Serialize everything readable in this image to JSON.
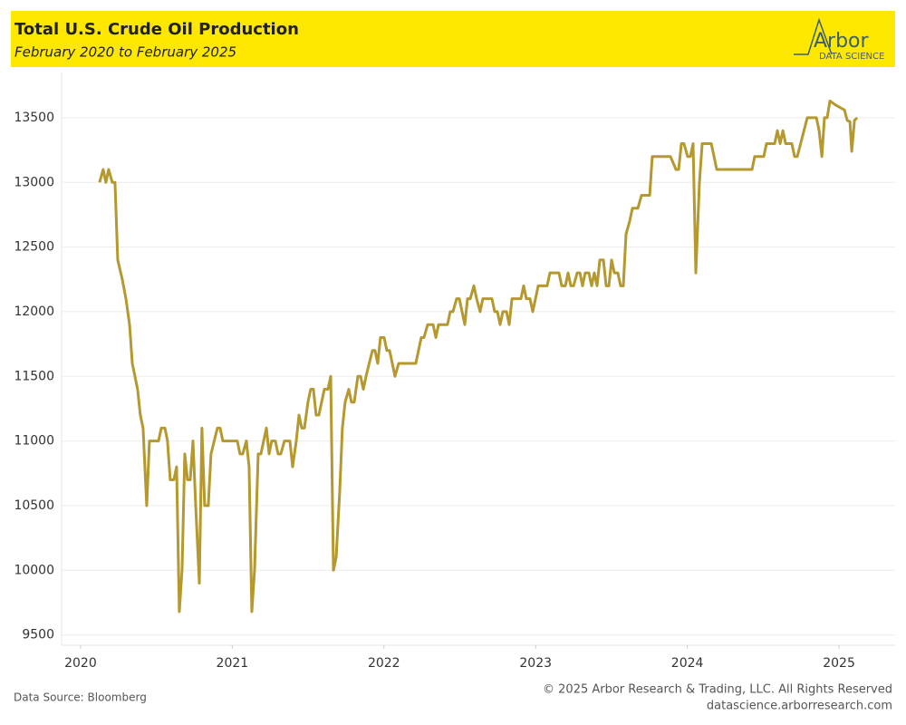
{
  "chart_data": {
    "type": "line",
    "title": "Total U.S. Crude Oil Production",
    "subtitle": "February 2020 to February 2025",
    "logo_text": "Arbor",
    "logo_subtext": "DATA SCIENCE",
    "source": "Data Source: Bloomberg",
    "copyright": "© 2025 Arbor Research & Trading, LLC. All Rights Reserved",
    "website": "datascience.arborresearch.com",
    "xlim": [
      2019.875,
      2025.37
    ],
    "xticks": [
      2020,
      2021,
      2022,
      2023,
      2024,
      2025
    ],
    "ylim": [
      9420,
      13850
    ],
    "yticks": [
      9500,
      10000,
      10500,
      11000,
      11500,
      12000,
      12500,
      13000,
      13500
    ],
    "grid": true,
    "x": [
      2020.125,
      2020.149,
      2020.167,
      2020.185,
      2020.209,
      2020.227,
      2020.245,
      2020.275,
      2020.299,
      2020.323,
      2020.341,
      2020.376,
      2020.394,
      2020.412,
      2020.436,
      2020.454,
      2020.514,
      2020.532,
      2020.556,
      2020.573,
      2020.591,
      2020.615,
      2020.633,
      2020.651,
      2020.669,
      2020.687,
      2020.705,
      2020.723,
      2020.741,
      2020.759,
      2020.783,
      2020.8,
      2020.818,
      2020.842,
      2020.86,
      2020.902,
      2020.92,
      2020.938,
      2021.033,
      2021.051,
      2021.069,
      2021.093,
      2021.111,
      2021.129,
      2021.147,
      2021.171,
      2021.189,
      2021.225,
      2021.243,
      2021.26,
      2021.284,
      2021.302,
      2021.32,
      2021.344,
      2021.38,
      2021.398,
      2021.422,
      2021.44,
      2021.458,
      2021.476,
      2021.499,
      2021.517,
      2021.535,
      2021.553,
      2021.571,
      2021.607,
      2021.631,
      2021.649,
      2021.667,
      2021.685,
      2021.708,
      2021.726,
      2021.744,
      2021.768,
      2021.786,
      2021.804,
      2021.828,
      2021.846,
      2021.864,
      2021.882,
      2021.924,
      2021.941,
      2021.959,
      2021.977,
      2022.001,
      2022.019,
      2022.037,
      2022.073,
      2022.097,
      2022.133,
      2022.21,
      2022.246,
      2022.264,
      2022.288,
      2022.324,
      2022.342,
      2022.36,
      2022.419,
      2022.437,
      2022.455,
      2022.479,
      2022.497,
      2022.533,
      2022.551,
      2022.569,
      2022.593,
      2022.611,
      2022.634,
      2022.652,
      2022.712,
      2022.73,
      2022.748,
      2022.766,
      2022.784,
      2022.808,
      2022.826,
      2022.844,
      2022.903,
      2022.921,
      2022.939,
      2022.963,
      2022.981,
      2023.017,
      2023.076,
      2023.094,
      2023.154,
      2023.172,
      2023.196,
      2023.214,
      2023.232,
      2023.25,
      2023.274,
      2023.292,
      2023.309,
      2023.327,
      2023.351,
      2023.369,
      2023.387,
      2023.405,
      2023.423,
      2023.447,
      2023.465,
      2023.483,
      2023.501,
      2023.519,
      2023.542,
      2023.56,
      2023.578,
      2023.596,
      2023.62,
      2023.638,
      2023.674,
      2023.698,
      2023.752,
      2023.769,
      2023.889,
      2023.925,
      2023.943,
      2023.961,
      2023.978,
      2024.002,
      2024.02,
      2024.038,
      2024.056,
      2024.08,
      2024.098,
      2024.158,
      2024.194,
      2024.427,
      2024.444,
      2024.504,
      2024.522,
      2024.576,
      2024.594,
      2024.612,
      2024.63,
      2024.648,
      2024.689,
      2024.707,
      2024.725,
      2024.791,
      2024.851,
      2024.869,
      2024.887,
      2024.904,
      2024.922,
      2024.94,
      2024.976,
      2025.036,
      2025.054,
      2025.072,
      2025.084,
      2025.102,
      2025.12
    ],
    "series": [
      {
        "color": "#b5982e",
        "values": [
          13000,
          13100,
          13000,
          13100,
          13000,
          13000,
          12400,
          12250,
          12100,
          11900,
          11600,
          11400,
          11200,
          11100,
          10500,
          11000,
          11000,
          11100,
          11100,
          11000,
          10700,
          10700,
          10800,
          9680,
          10000,
          10900,
          10700,
          10700,
          11000,
          10500,
          9900,
          11100,
          10500,
          10500,
          10900,
          11100,
          11100,
          11000,
          11000,
          10900,
          10900,
          11000,
          10800,
          9680,
          10000,
          10900,
          10900,
          11100,
          10900,
          11000,
          11000,
          10900,
          10900,
          11000,
          11000,
          10800,
          11000,
          11200,
          11100,
          11100,
          11300,
          11400,
          11400,
          11200,
          11200,
          11400,
          11400,
          11500,
          10000,
          10100,
          10600,
          11100,
          11300,
          11400,
          11300,
          11300,
          11500,
          11500,
          11400,
          11500,
          11700,
          11700,
          11600,
          11800,
          11800,
          11700,
          11700,
          11500,
          11600,
          11600,
          11600,
          11800,
          11800,
          11900,
          11900,
          11800,
          11900,
          11900,
          12000,
          12000,
          12100,
          12100,
          11900,
          12100,
          12100,
          12200,
          12100,
          12000,
          12100,
          12100,
          12000,
          12000,
          11900,
          12000,
          12000,
          11900,
          12100,
          12100,
          12200,
          12100,
          12100,
          12000,
          12200,
          12200,
          12300,
          12300,
          12200,
          12200,
          12300,
          12200,
          12200,
          12300,
          12300,
          12200,
          12300,
          12300,
          12200,
          12300,
          12200,
          12400,
          12400,
          12200,
          12200,
          12400,
          12300,
          12300,
          12200,
          12200,
          12600,
          12700,
          12800,
          12800,
          12900,
          12900,
          13200,
          13200,
          13100,
          13100,
          13300,
          13300,
          13200,
          13200,
          13300,
          12300,
          13000,
          13300,
          13300,
          13100,
          13100,
          13200,
          13200,
          13300,
          13300,
          13400,
          13300,
          13400,
          13300,
          13300,
          13200,
          13200,
          13500,
          13500,
          13400,
          13200,
          13500,
          13500,
          13630,
          13600,
          13560,
          13480,
          13470,
          13240,
          13480,
          13500
        ]
      }
    ]
  }
}
